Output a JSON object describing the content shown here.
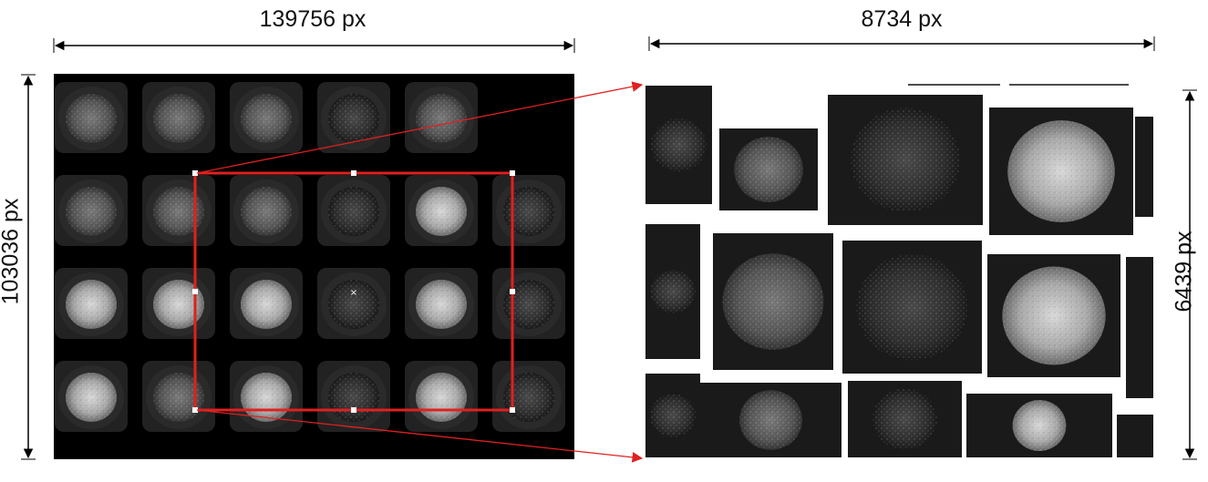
{
  "overview": {
    "width_label": "139756 px",
    "height_label": "103036 px",
    "grid": {
      "rows": 4,
      "cols": 6
    }
  },
  "zoom": {
    "width_label": "8734 px",
    "height_label": "6439 px"
  },
  "colors": {
    "selection": "#e02020",
    "arrow": "#e02020",
    "dimension": "#000000",
    "background": "#000000",
    "tissue_dim": "#3a3a3a",
    "tissue_bright": "#cfcfcf"
  }
}
